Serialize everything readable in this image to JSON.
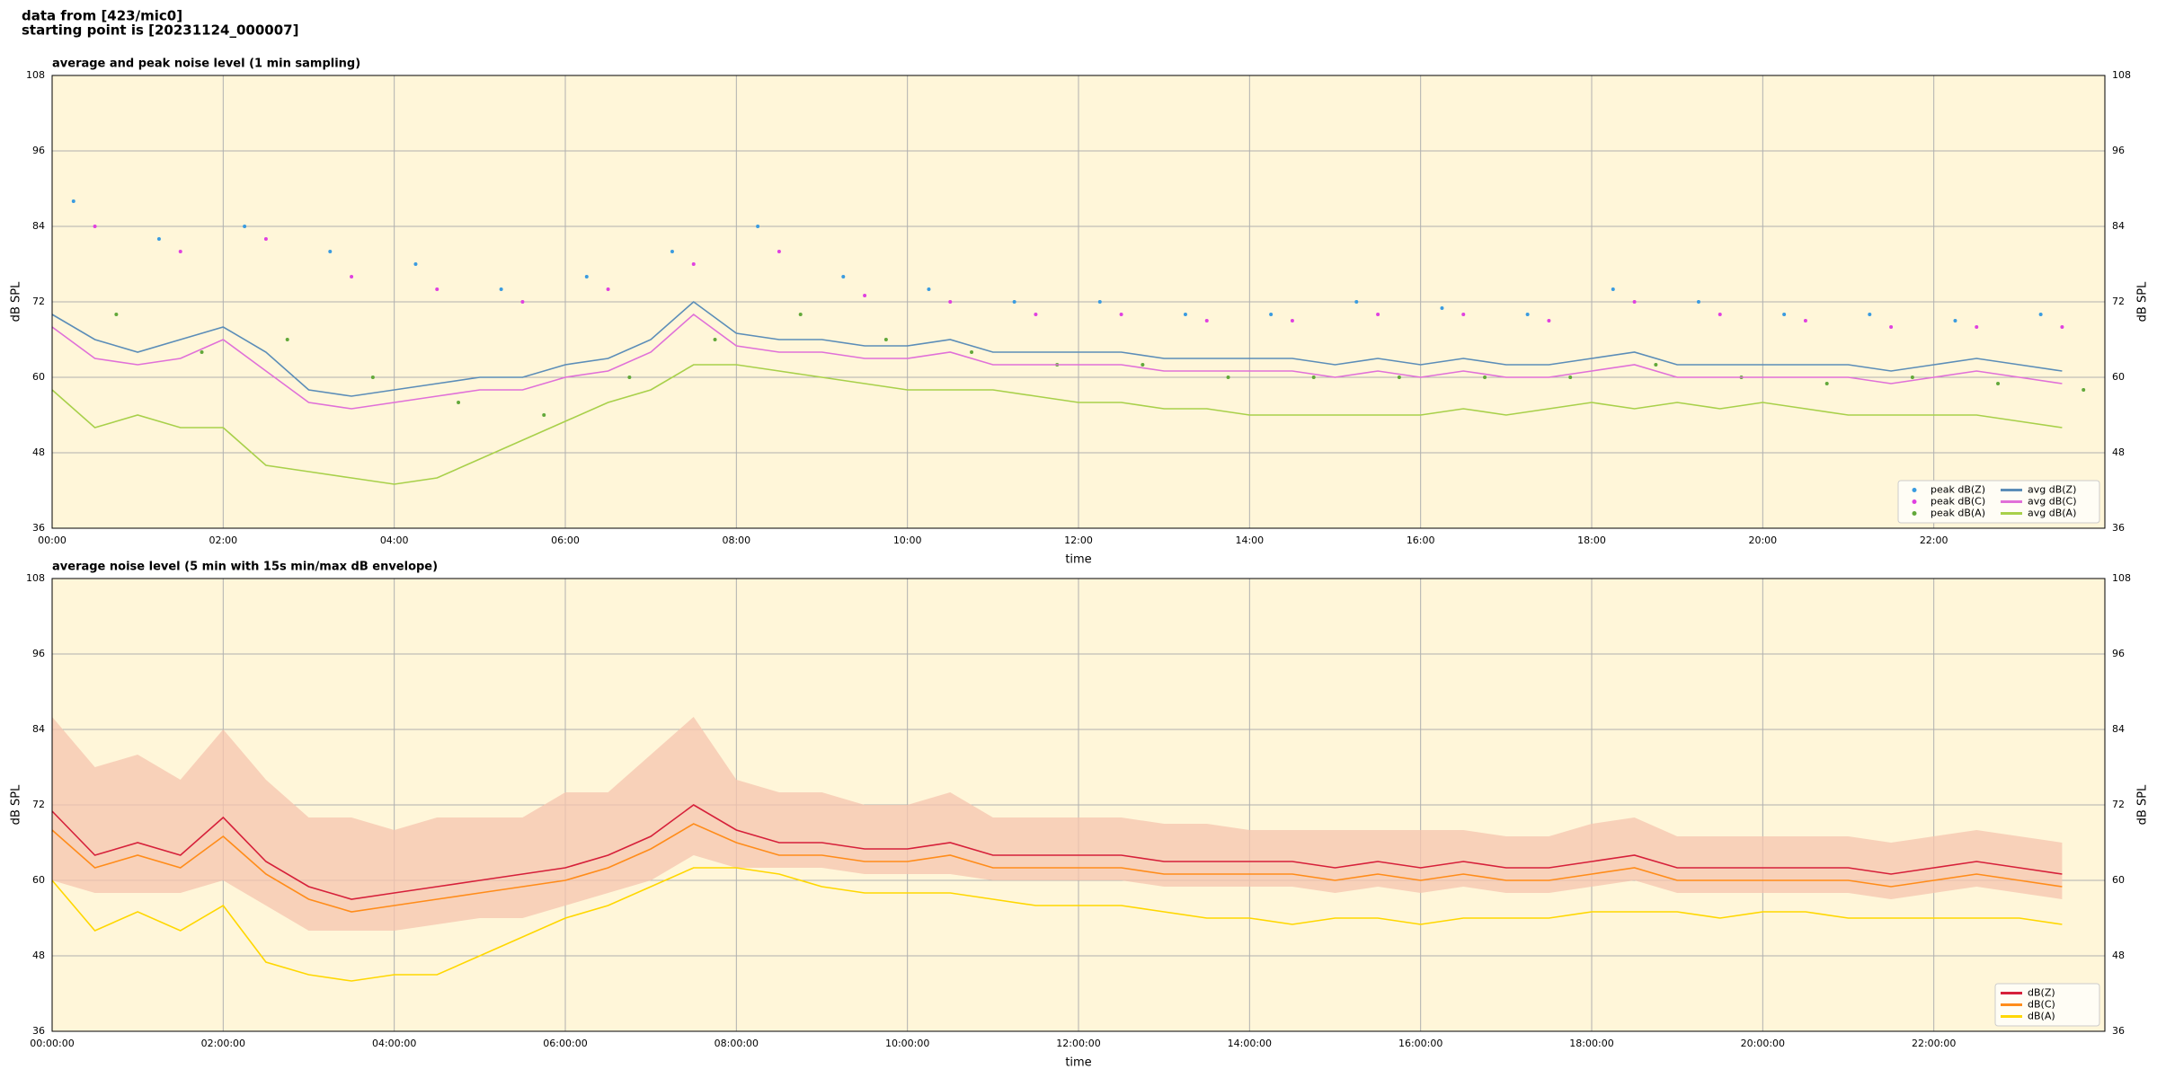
{
  "header": {
    "title": [
      "data from [423/mic0]",
      "starting point is [20231124_000007]"
    ]
  },
  "chart_data": [
    {
      "type": "line",
      "title": "average and peak noise level (1 min sampling)",
      "xlabel": "time",
      "ylabel": "dB SPL",
      "xlim": [
        0,
        24
      ],
      "ylim": [
        36,
        108
      ],
      "yticks": [
        36,
        48,
        60,
        72,
        84,
        96,
        108
      ],
      "xticks": [
        {
          "value": 0,
          "label": "00:00"
        },
        {
          "value": 2,
          "label": "02:00"
        },
        {
          "value": 4,
          "label": "04:00"
        },
        {
          "value": 6,
          "label": "06:00"
        },
        {
          "value": 8,
          "label": "08:00"
        },
        {
          "value": 10,
          "label": "10:00"
        },
        {
          "value": 12,
          "label": "12:00"
        },
        {
          "value": 14,
          "label": "14:00"
        },
        {
          "value": 16,
          "label": "16:00"
        },
        {
          "value": 18,
          "label": "18:00"
        },
        {
          "value": 20,
          "label": "20:00"
        },
        {
          "value": 22,
          "label": "22:00"
        }
      ],
      "grid": true,
      "legend": "lower right",
      "legend_columns": 2,
      "background": "#fff6d9",
      "x": [
        0,
        0.5,
        1,
        1.5,
        2,
        2.5,
        3,
        3.5,
        4,
        4.5,
        5,
        5.5,
        6,
        6.5,
        7,
        7.5,
        8,
        8.5,
        9,
        9.5,
        10,
        10.5,
        11,
        11.5,
        12,
        12.5,
        13,
        13.5,
        14,
        14.5,
        15,
        15.5,
        16,
        16.5,
        17,
        17.5,
        18,
        18.5,
        19,
        19.5,
        20,
        20.5,
        21,
        21.5,
        22,
        22.5,
        23,
        23.5
      ],
      "series": [
        {
          "name": "peak dB(Z)",
          "style": "scatter",
          "color": "#3a9be0",
          "x": [
            0.25,
            1.25,
            2.25,
            3.25,
            4.25,
            5.25,
            6.25,
            7.25,
            8.25,
            9.25,
            10.25,
            11.25,
            12.25,
            13.25,
            14.25,
            15.25,
            16.25,
            17.25,
            18.25,
            19.25,
            20.25,
            21.25,
            22.25,
            23.25
          ],
          "values": [
            88,
            82,
            84,
            80,
            78,
            74,
            76,
            80,
            84,
            76,
            74,
            72,
            72,
            70,
            70,
            72,
            71,
            70,
            74,
            72,
            70,
            70,
            69,
            70
          ]
        },
        {
          "name": "peak dB(C)",
          "style": "scatter",
          "color": "#e040e0",
          "x": [
            0.5,
            1.5,
            2.5,
            3.5,
            4.5,
            5.5,
            6.5,
            7.5,
            8.5,
            9.5,
            10.5,
            11.5,
            12.5,
            13.5,
            14.5,
            15.5,
            16.5,
            17.5,
            18.5,
            19.5,
            20.5,
            21.5,
            22.5,
            23.5
          ],
          "values": [
            84,
            80,
            82,
            76,
            74,
            72,
            74,
            78,
            80,
            73,
            72,
            70,
            70,
            69,
            69,
            70,
            70,
            69,
            72,
            70,
            69,
            68,
            68,
            68
          ]
        },
        {
          "name": "peak dB(A)",
          "style": "scatter",
          "color": "#62a83a",
          "x": [
            0.75,
            1.75,
            2.75,
            3.75,
            4.75,
            5.75,
            6.75,
            7.75,
            8.75,
            9.75,
            10.75,
            11.75,
            12.75,
            13.75,
            14.75,
            15.75,
            16.75,
            17.75,
            18.75,
            19.75,
            20.75,
            21.75,
            22.75,
            23.75
          ],
          "values": [
            70,
            64,
            66,
            60,
            56,
            54,
            60,
            66,
            70,
            66,
            64,
            62,
            62,
            60,
            60,
            60,
            60,
            60,
            62,
            60,
            59,
            60,
            59,
            58
          ]
        },
        {
          "name": "avg dB(Z)",
          "style": "line",
          "color": "#5b8db8",
          "values": [
            70,
            66,
            64,
            66,
            68,
            64,
            58,
            57,
            58,
            59,
            60,
            60,
            62,
            63,
            66,
            72,
            67,
            66,
            66,
            65,
            65,
            66,
            64,
            64,
            64,
            64,
            63,
            63,
            63,
            63,
            62,
            63,
            62,
            63,
            62,
            62,
            63,
            64,
            62,
            62,
            62,
            62,
            62,
            61,
            62,
            63,
            62,
            61
          ]
        },
        {
          "name": "avg dB(C)",
          "style": "line",
          "color": "#e070d8",
          "values": [
            68,
            63,
            62,
            63,
            66,
            61,
            56,
            55,
            56,
            57,
            58,
            58,
            60,
            61,
            64,
            70,
            65,
            64,
            64,
            63,
            63,
            64,
            62,
            62,
            62,
            62,
            61,
            61,
            61,
            61,
            60,
            61,
            60,
            61,
            60,
            60,
            61,
            62,
            60,
            60,
            60,
            60,
            60,
            59,
            60,
            61,
            60,
            59
          ]
        },
        {
          "name": "avg dB(A)",
          "style": "line",
          "color": "#a8d04a",
          "values": [
            58,
            52,
            54,
            52,
            52,
            46,
            45,
            44,
            43,
            44,
            47,
            50,
            53,
            56,
            58,
            62,
            62,
            61,
            60,
            59,
            58,
            58,
            58,
            57,
            56,
            56,
            55,
            55,
            54,
            54,
            54,
            54,
            54,
            55,
            54,
            55,
            56,
            55,
            56,
            55,
            56,
            55,
            54,
            54,
            54,
            54,
            53,
            52
          ]
        }
      ]
    },
    {
      "type": "line",
      "title": "average noise level (5 min with 15s min/max dB envelope)",
      "xlabel": "time",
      "ylabel": "dB SPL",
      "xlim": [
        0,
        24
      ],
      "ylim": [
        36,
        108
      ],
      "yticks": [
        36,
        48,
        60,
        72,
        84,
        96,
        108
      ],
      "xticks": [
        {
          "value": 0,
          "label": "00:00:00"
        },
        {
          "value": 2,
          "label": "02:00:00"
        },
        {
          "value": 4,
          "label": "04:00:00"
        },
        {
          "value": 6,
          "label": "06:00:00"
        },
        {
          "value": 8,
          "label": "08:00:00"
        },
        {
          "value": 10,
          "label": "10:00:00"
        },
        {
          "value": 12,
          "label": "12:00:00"
        },
        {
          "value": 14,
          "label": "14:00:00"
        },
        {
          "value": 16,
          "label": "16:00:00"
        },
        {
          "value": 18,
          "label": "18:00:00"
        },
        {
          "value": 20,
          "label": "20:00:00"
        },
        {
          "value": 22,
          "label": "22:00:00"
        }
      ],
      "grid": true,
      "legend": "lower right",
      "legend_columns": 1,
      "background": "#fff6d9",
      "x": [
        0,
        0.5,
        1,
        1.5,
        2,
        2.5,
        3,
        3.5,
        4,
        4.5,
        5,
        5.5,
        6,
        6.5,
        7,
        7.5,
        8,
        8.5,
        9,
        9.5,
        10,
        10.5,
        11,
        11.5,
        12,
        12.5,
        13,
        13.5,
        14,
        14.5,
        15,
        15.5,
        16,
        16.5,
        17,
        17.5,
        18,
        18.5,
        19,
        19.5,
        20,
        20.5,
        21,
        21.5,
        22,
        22.5,
        23,
        23.5
      ],
      "envelope": {
        "color": "#f6c4ae",
        "high": [
          86,
          78,
          80,
          76,
          84,
          76,
          70,
          70,
          68,
          70,
          70,
          70,
          74,
          74,
          80,
          86,
          76,
          74,
          74,
          72,
          72,
          74,
          70,
          70,
          70,
          70,
          69,
          69,
          68,
          68,
          68,
          68,
          68,
          68,
          67,
          67,
          69,
          70,
          67,
          67,
          67,
          67,
          67,
          66,
          67,
          68,
          67,
          66
        ],
        "low": [
          60,
          58,
          58,
          58,
          60,
          56,
          52,
          52,
          52,
          53,
          54,
          54,
          56,
          58,
          60,
          64,
          62,
          62,
          62,
          61,
          61,
          61,
          60,
          60,
          60,
          60,
          59,
          59,
          59,
          59,
          58,
          59,
          58,
          59,
          58,
          58,
          59,
          60,
          58,
          58,
          58,
          58,
          58,
          57,
          58,
          59,
          58,
          57
        ]
      },
      "series": [
        {
          "name": "dB(Z)",
          "style": "line",
          "color": "#d6203a",
          "values": [
            71,
            64,
            66,
            64,
            70,
            63,
            59,
            57,
            58,
            59,
            60,
            61,
            62,
            64,
            67,
            72,
            68,
            66,
            66,
            65,
            65,
            66,
            64,
            64,
            64,
            64,
            63,
            63,
            63,
            63,
            62,
            63,
            62,
            63,
            62,
            62,
            63,
            64,
            62,
            62,
            62,
            62,
            62,
            61,
            62,
            63,
            62,
            61
          ]
        },
        {
          "name": "dB(C)",
          "style": "line",
          "color": "#ff8c1a",
          "values": [
            68,
            62,
            64,
            62,
            67,
            61,
            57,
            55,
            56,
            57,
            58,
            59,
            60,
            62,
            65,
            69,
            66,
            64,
            64,
            63,
            63,
            64,
            62,
            62,
            62,
            62,
            61,
            61,
            61,
            61,
            60,
            61,
            60,
            61,
            60,
            60,
            61,
            62,
            60,
            60,
            60,
            60,
            60,
            59,
            60,
            61,
            60,
            59
          ]
        },
        {
          "name": "dB(A)",
          "style": "line",
          "color": "#ffd700",
          "values": [
            60,
            52,
            55,
            52,
            56,
            47,
            45,
            44,
            45,
            45,
            48,
            51,
            54,
            56,
            59,
            62,
            62,
            61,
            59,
            58,
            58,
            58,
            57,
            56,
            56,
            56,
            55,
            54,
            54,
            53,
            54,
            54,
            53,
            54,
            54,
            54,
            55,
            55,
            55,
            54,
            55,
            55,
            54,
            54,
            54,
            54,
            54,
            53
          ]
        }
      ]
    }
  ]
}
